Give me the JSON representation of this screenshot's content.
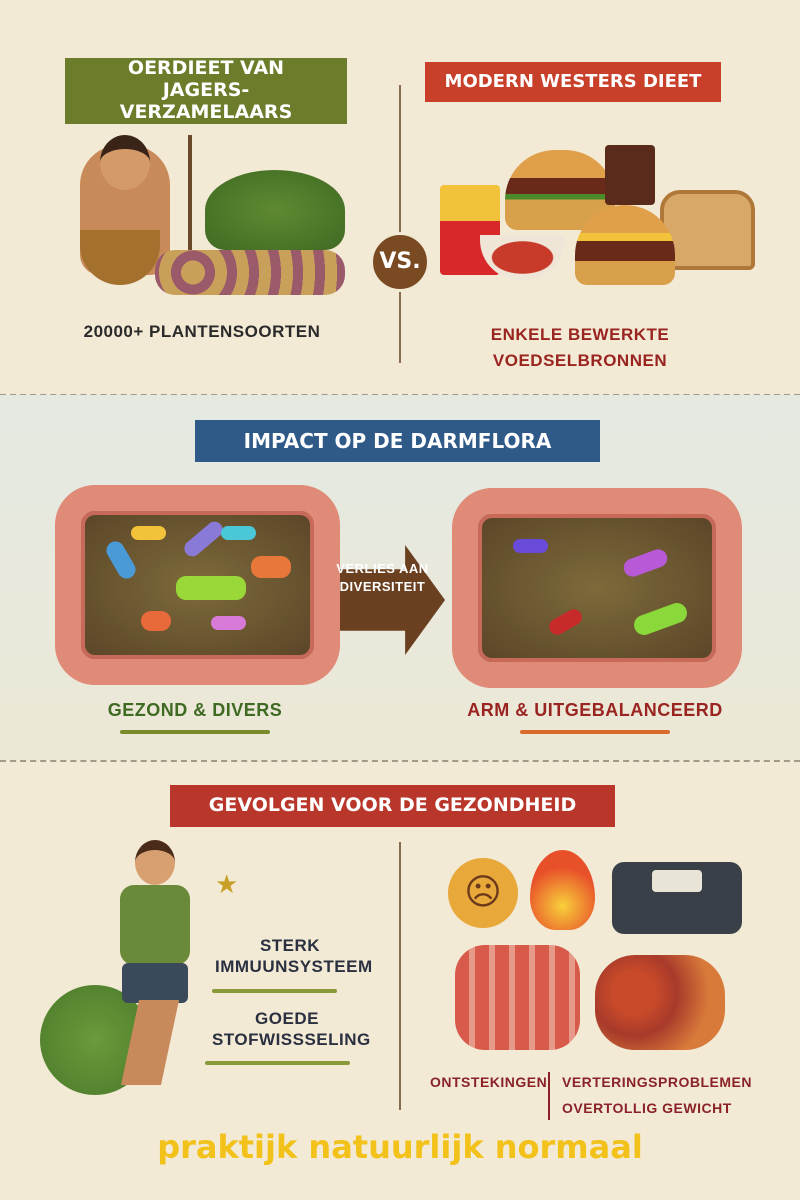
{
  "top": {
    "left_title": "OERDIEET VAN JAGERS-VERZAMELAARS",
    "right_title": "MODERN WESTERS DIEET",
    "vs": "VS.",
    "left_caption": "20000+ PLANTENSOORTEN",
    "right_caption": "ENKELE BEWERKTE VOEDSELBRONNEN"
  },
  "middle": {
    "title": "IMPACT OP DE DARMFLORA",
    "arrow_label": "VERLIES AAN DIVERSITEIT",
    "left_caption": "GEZOND & DIVERS",
    "right_caption": "ARM & UITGEBALANCEERD"
  },
  "bottom": {
    "title": "GEVOLGEN VOOR DE GEZONDHEID",
    "benefit_1": "STERK IMMUUNSYSTEEM",
    "benefit_2": "GOEDE STOFWISSSELING",
    "problem_1": "ONTSTEKINGEN",
    "problem_2": "VERTERINGSPROBLEMEN",
    "problem_3": "OVERTOLLIG GEWICHT"
  },
  "footer": "praktijk natuurlijk normaal",
  "colors": {
    "green": "#6b7d2a",
    "red": "#c8402a",
    "blue": "#2f5a88",
    "brown": "#7a4a22",
    "dark_red": "#9a2420",
    "footer": "#f2c21a"
  }
}
